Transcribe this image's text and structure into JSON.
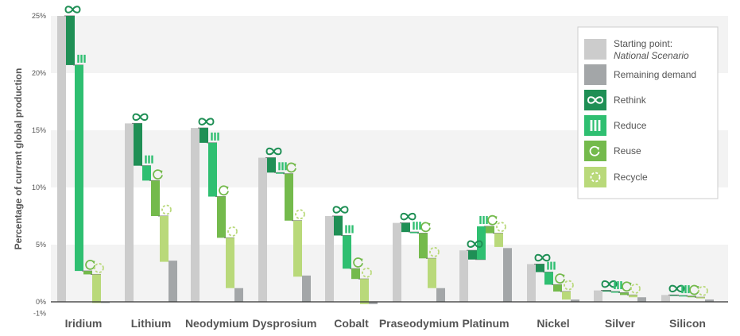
{
  "chart_data": {
    "type": "bar",
    "subtype": "waterfall",
    "ylabel": "Percentage of current global production",
    "ylim": [
      -1,
      25
    ],
    "yticks": [
      {
        "value": 25,
        "label": "25%"
      },
      {
        "value": 20,
        "label": "20%"
      },
      {
        "value": 15,
        "label": "15%"
      },
      {
        "value": 10,
        "label": "10%"
      },
      {
        "value": 5,
        "label": "5%"
      },
      {
        "value": 0,
        "label": "0%"
      },
      {
        "value": -1,
        "label": "-1%"
      }
    ],
    "grid": "alternating horizontal bands",
    "legend_position": "top-right",
    "legend": [
      {
        "key": "start",
        "label": "Starting point:",
        "label2": "National Scenario",
        "color": "#cccccc",
        "icon": "none"
      },
      {
        "key": "remaining",
        "label": "Remaining demand",
        "color": "#a3a6a8",
        "icon": "none"
      },
      {
        "key": "rethink",
        "label": "Rethink",
        "color": "#1f8f55",
        "icon": "infinity-icon"
      },
      {
        "key": "reduce",
        "label": "Reduce",
        "color": "#2fbf71",
        "icon": "reduce-bars-icon"
      },
      {
        "key": "reuse",
        "label": "Reuse",
        "color": "#74ba4c",
        "icon": "reuse-circle-icon"
      },
      {
        "key": "recycle",
        "label": "Recycle",
        "color": "#b9d97a",
        "icon": "recycle-dashed-circle-icon"
      }
    ],
    "categories": [
      "Iridium",
      "Lithium",
      "Neodymium",
      "Dysprosium",
      "Cobalt",
      "Praseodymium",
      "Platinum",
      "Nickel",
      "Silver",
      "Silicon"
    ],
    "series_order": [
      "start",
      "rethink",
      "reduce",
      "reuse",
      "recycle",
      "remaining"
    ],
    "data": [
      {
        "category": "Iridium",
        "start": 25.0,
        "rethink": -4.3,
        "reduce": -18.0,
        "reuse": -0.3,
        "recycle": -2.5,
        "remaining": -0.1
      },
      {
        "category": "Lithium",
        "start": 15.6,
        "rethink": -3.7,
        "reduce": -1.3,
        "reuse": -3.1,
        "recycle": -4.0,
        "remaining": 3.6
      },
      {
        "category": "Neodymium",
        "start": 15.2,
        "rethink": -1.3,
        "reduce": -4.7,
        "reuse": -3.6,
        "recycle": -4.4,
        "remaining": 1.2
      },
      {
        "category": "Dysprosium",
        "start": 12.6,
        "rethink": -1.3,
        "reduce": -0.1,
        "reuse": -4.1,
        "recycle": -4.9,
        "remaining": 2.3
      },
      {
        "category": "Cobalt",
        "start": 7.5,
        "rethink": -1.7,
        "reduce": -2.9,
        "reuse": -0.9,
        "recycle": -2.2,
        "remaining": -0.2
      },
      {
        "category": "Praseodymium",
        "start": 6.9,
        "rethink": -0.8,
        "reduce": -0.1,
        "reuse": -2.2,
        "recycle": -2.6,
        "remaining": 1.2
      },
      {
        "category": "Platinum",
        "start": 4.5,
        "rethink": -0.8,
        "reduce": 2.9,
        "reuse": -0.6,
        "recycle": -1.2,
        "remaining": 4.7
      },
      {
        "category": "Nickel",
        "start": 3.3,
        "rethink": -0.7,
        "reduce": -1.1,
        "reuse": -0.6,
        "recycle": -0.7,
        "remaining": 0.2
      },
      {
        "category": "Silver",
        "start": 1.0,
        "rethink": -0.1,
        "reduce": -0.1,
        "reuse": -0.2,
        "recycle": -0.2,
        "remaining": 0.4
      },
      {
        "category": "Silicon",
        "start": 0.6,
        "rethink": -0.05,
        "reduce": -0.05,
        "reuse": -0.1,
        "recycle": -0.1,
        "remaining": 0.2
      }
    ]
  }
}
